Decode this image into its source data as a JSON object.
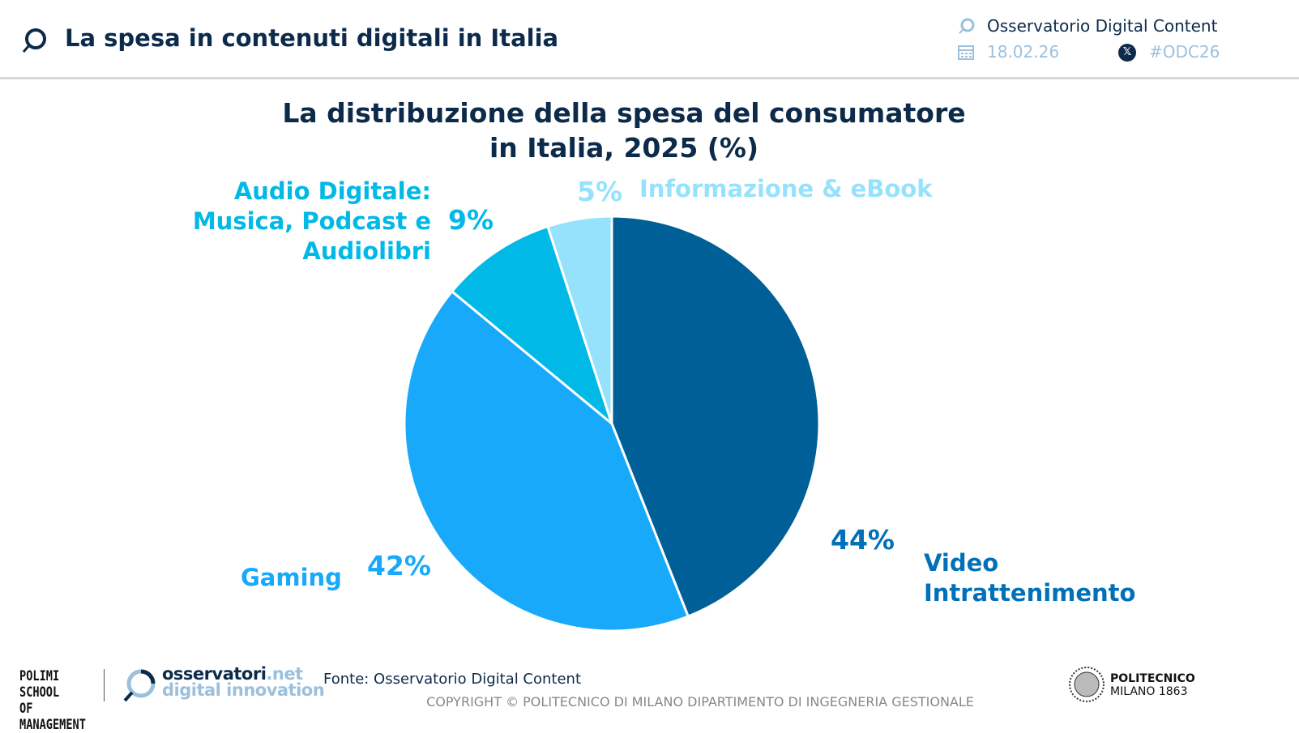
{
  "header": {
    "title": "La spesa in contenuti digitali in Italia",
    "observatory": "Osservatorio Digital Content",
    "date": "18.02.26",
    "hashtag": "#ODC26"
  },
  "chart_data": {
    "type": "pie",
    "title": "La distribuzione della spesa del consumatore in Italia, 2025 (%)",
    "title_lines": [
      "La distribuzione della spesa del consumatore",
      "in Italia, 2025 (%)"
    ],
    "slices": [
      {
        "name": "Video Intrattenimento",
        "name_lines": [
          "Video",
          "Intrattenimento"
        ],
        "value": 44,
        "label": "44%",
        "color": "#005f96"
      },
      {
        "name": "Gaming",
        "name_lines": [
          "Gaming"
        ],
        "value": 42,
        "label": "42%",
        "color": "#18a9fa"
      },
      {
        "name": "Audio Digitale: Musica, Podcast e Audiolibri",
        "name_lines": [
          "Audio Digitale:",
          "Musica, Podcast e",
          "Audiolibri"
        ],
        "value": 9,
        "label": "9%",
        "color": "#00b9e6"
      },
      {
        "name": "Informazione & eBook",
        "name_lines": [
          "Informazione & eBook"
        ],
        "value": 5,
        "label": "5%",
        "color": "#96e2fc"
      }
    ],
    "start_angle": "top",
    "direction": "clockwise"
  },
  "footer": {
    "source": "Fonte: Osservatorio Digital Content",
    "copyright": "COPYRIGHT © POLITECNICO DI MILANO DIPARTIMENTO DI INGEGNERIA GESTIONALE",
    "logo_polimi": "POLIMI SCHOOL OF MANAGEMENT",
    "logo_osservatori_1": "osservatori",
    "logo_osservatori_net": ".net",
    "logo_osservatori_2": "digital innovation",
    "logo_politecnico_1": "POLITECNICO",
    "logo_politecnico_2": "MILANO 1863"
  }
}
